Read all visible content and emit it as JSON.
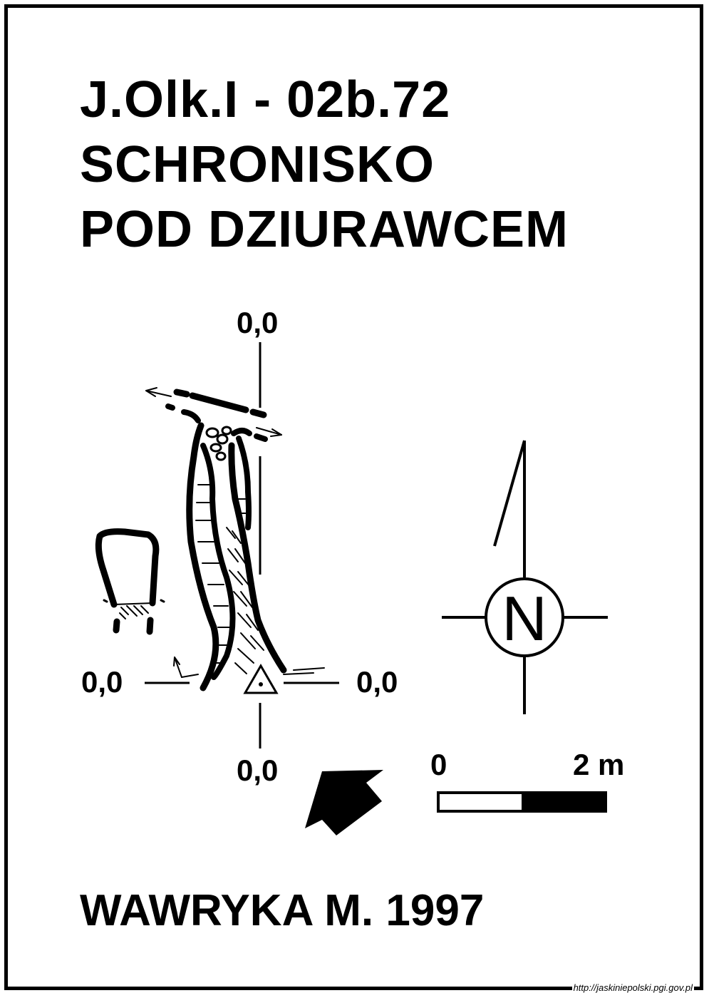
{
  "header": {
    "code": "J.Olk.I - 02b.72",
    "name_line1": "SCHRONISKO",
    "name_line2": "POD DZIURAWCEM"
  },
  "datum_labels": {
    "top": "0,0",
    "left": "0,0",
    "right": "0,0",
    "bottom": "0,0"
  },
  "north_arrow": {
    "letter": "N"
  },
  "scale_bar": {
    "start_label": "0",
    "end_label": "2 m"
  },
  "author": "WAWRYKA M. 1997",
  "source_url": "http://jaskiniepolski.pgi.gov.pl"
}
